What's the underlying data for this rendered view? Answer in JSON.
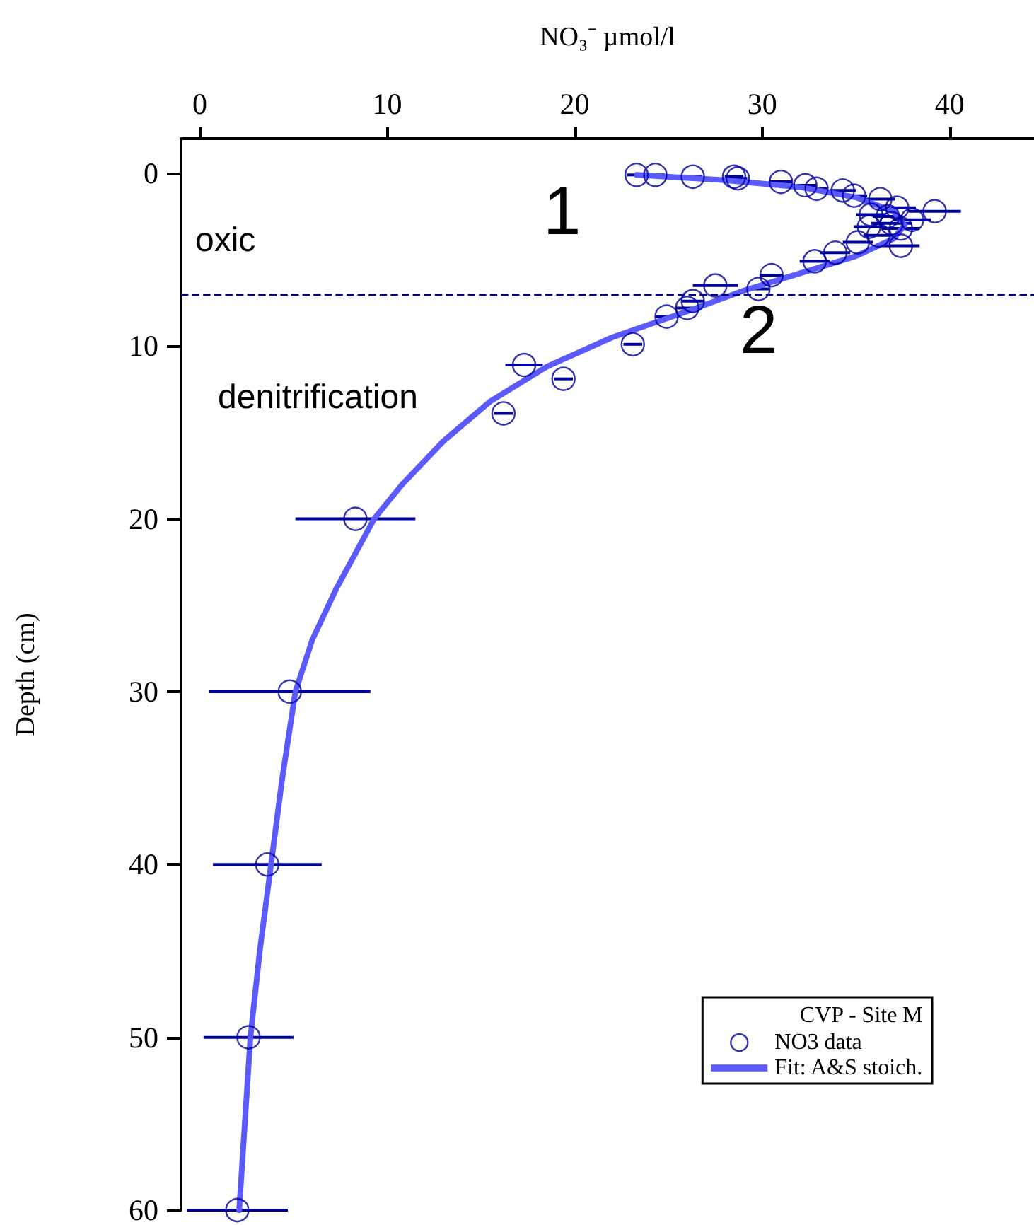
{
  "chart_data": {
    "type": "scatter",
    "xlabel": "NO₃⁻ µmol/l",
    "ylabel": "Depth (cm)",
    "legend_title": "CVP - Site M",
    "xlim": [
      -1,
      44.5
    ],
    "xticks": [
      0,
      10,
      20,
      30,
      40
    ],
    "ylim": [
      60,
      -2
    ],
    "yticks": [
      0,
      10,
      20,
      30,
      40,
      50,
      60
    ],
    "grid": false,
    "legend": "bottom right",
    "marker": "circle",
    "series": [
      {
        "name": "NO3 data",
        "color": "#0000a0",
        "x": [
          23.3,
          24.3,
          26.3,
          28.5,
          28.7,
          31.0,
          32.3,
          32.9,
          34.3,
          34.9,
          36.3,
          37.2,
          39.2,
          35.8,
          36.7,
          38.0,
          35.7,
          36.9,
          37.4,
          36.2,
          37.4,
          35.1,
          33.9,
          32.8,
          30.5,
          29.8,
          27.5,
          26.3,
          26.0,
          24.9,
          23.1,
          17.3,
          19.4,
          16.2,
          8.3,
          4.8,
          3.6,
          2.6,
          2.0
        ],
        "values": [
          0.1,
          0.1,
          0.2,
          0.2,
          0.3,
          0.5,
          0.7,
          0.9,
          1.0,
          1.3,
          1.5,
          2.0,
          2.2,
          2.4,
          2.5,
          2.7,
          3.1,
          2.9,
          3.2,
          3.6,
          4.2,
          4.0,
          4.6,
          5.1,
          5.9,
          6.7,
          6.5,
          7.4,
          7.8,
          8.3,
          9.9,
          11.1,
          11.9,
          13.9,
          20,
          30,
          40,
          50,
          60
        ],
        "xerrors": [
          0.5,
          0.5,
          0.5,
          0.5,
          0.5,
          0.6,
          0.6,
          0.6,
          0.7,
          0.7,
          0.8,
          1.0,
          1.4,
          0.8,
          0.8,
          1.0,
          0.8,
          1.1,
          1.0,
          0.8,
          1.0,
          0.8,
          0.8,
          0.8,
          0.6,
          0.6,
          1.2,
          0.6,
          0.6,
          0.6,
          0.5,
          1.0,
          0.5,
          0.5,
          3.2,
          4.3,
          2.9,
          2.4,
          2.7
        ]
      },
      {
        "name": "Fit: A&S stoich.",
        "type": "line",
        "color": "#5a5aff",
        "marker": "none",
        "line_style": "solid",
        "x": [
          23.3,
          28,
          32,
          35,
          37,
          37.6,
          37,
          35,
          32,
          29,
          26,
          22,
          18.5,
          15.5,
          13,
          10.8,
          9.3,
          7.3,
          6.0,
          5.1,
          4.4,
          3.8,
          3.2,
          2.7,
          2.4,
          2.1
        ],
        "values": [
          0.1,
          0.4,
          0.8,
          1.4,
          2.2,
          3.0,
          3.8,
          4.8,
          5.8,
          6.8,
          8.0,
          9.5,
          11.2,
          13.2,
          15.5,
          18.0,
          20,
          24,
          27,
          30,
          35,
          40,
          45,
          50,
          55,
          60
        ]
      }
    ],
    "ref_lines": [
      {
        "axis": "y",
        "value": 7.0,
        "color": "#000080",
        "line_style": "dashed"
      }
    ],
    "annotations": [
      "1",
      "2",
      "oxic",
      "denitrification"
    ]
  }
}
